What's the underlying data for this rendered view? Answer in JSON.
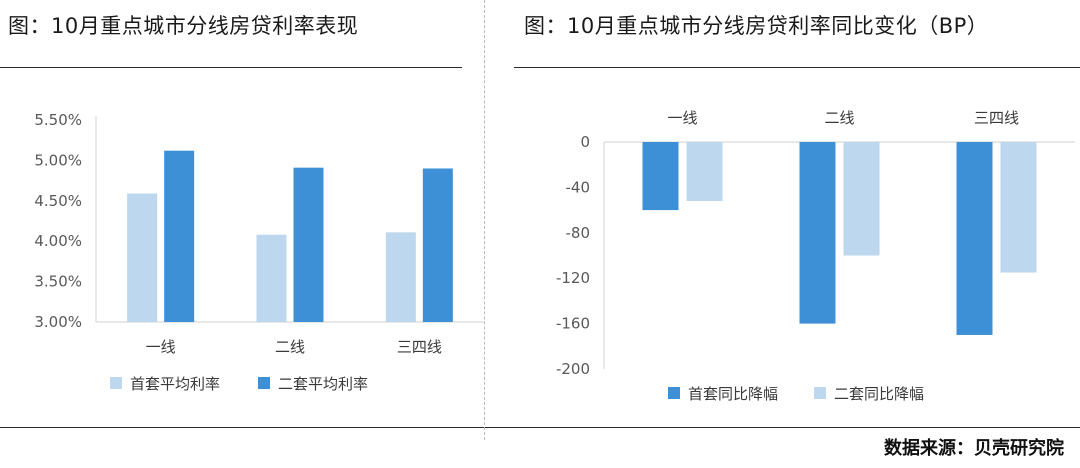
{
  "source": "数据来源：贝壳研究院",
  "chart_data": [
    {
      "type": "bar",
      "title": "图：10月重点城市分线房贷利率表现",
      "categories": [
        "一线",
        "二线",
        "三四线"
      ],
      "series": [
        {
          "name": "首套平均利率",
          "values": [
            4.59,
            4.08,
            4.11
          ],
          "color": "#bdd7ee"
        },
        {
          "name": "二套平均利率",
          "values": [
            5.12,
            4.91,
            4.9
          ],
          "color": "#3d8fd6"
        }
      ],
      "y_ticks": [
        "3.00%",
        "3.50%",
        "4.00%",
        "4.50%",
        "5.00%",
        "5.50%"
      ],
      "ylim": [
        3.0,
        5.5
      ],
      "grid": false,
      "legend_position": "bottom"
    },
    {
      "type": "bar",
      "title": "图：10月重点城市分线房贷利率同比变化（BP）",
      "categories": [
        "一线",
        "二线",
        "三四线"
      ],
      "series": [
        {
          "name": "首套同比降幅",
          "values": [
            -60,
            -160,
            -170
          ],
          "color": "#3d8fd6"
        },
        {
          "name": "二套同比降幅",
          "values": [
            -52,
            -100,
            -115
          ],
          "color": "#bdd7ee"
        }
      ],
      "y_ticks": [
        "0",
        "-40",
        "-80",
        "-120",
        "-160",
        "-200"
      ],
      "ylim": [
        -200,
        0
      ],
      "grid": false,
      "legend_position": "bottom",
      "category_labels_position": "top"
    }
  ]
}
